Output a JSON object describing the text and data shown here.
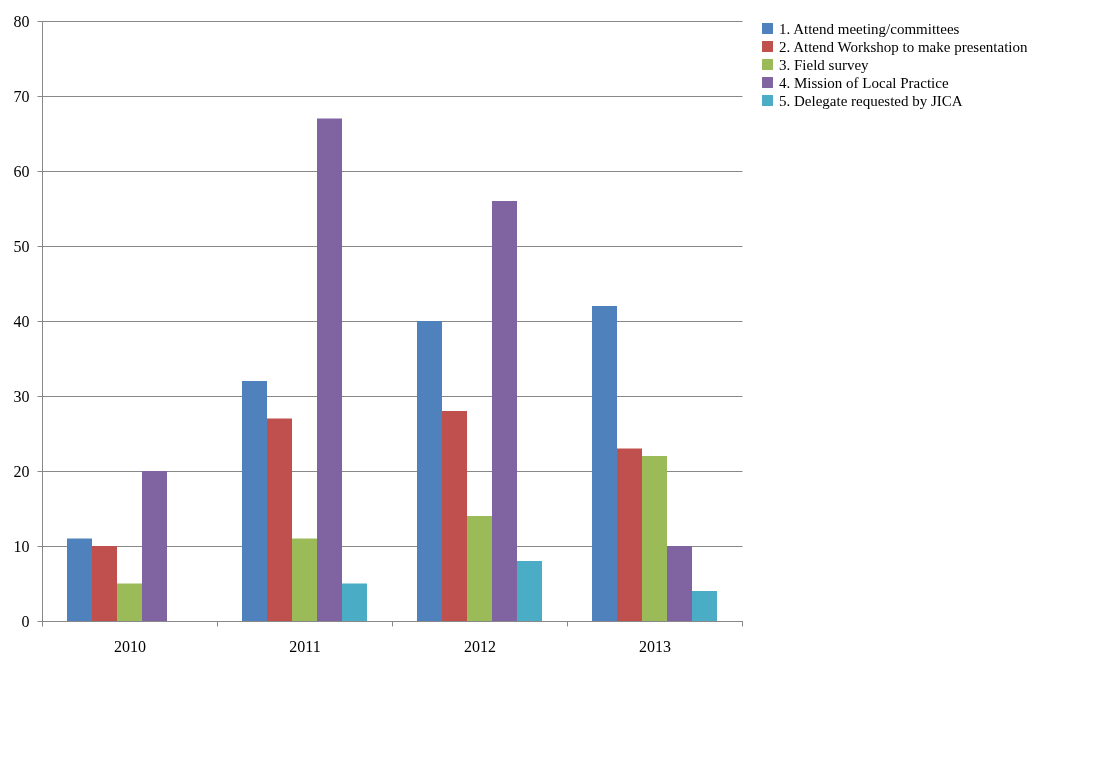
{
  "chart_data": {
    "type": "bar",
    "categories": [
      "2010",
      "2011",
      "2012",
      "2013"
    ],
    "series": [
      {
        "name": "1. Attend meeting/committees",
        "color": "#4f81bd",
        "values": [
          11,
          32,
          40,
          42
        ]
      },
      {
        "name": "2. Attend Workshop to make presentation",
        "color": "#c0504d",
        "values": [
          10,
          27,
          28,
          23
        ]
      },
      {
        "name": "3. Field survey",
        "color": "#9bbb59",
        "values": [
          5,
          11,
          14,
          22
        ]
      },
      {
        "name": "4. Mission of Local Practice",
        "color": "#8064a2",
        "values": [
          20,
          67,
          56,
          10
        ]
      },
      {
        "name": "5. Delegate requested by JICA",
        "color": "#4bacc6",
        "values": [
          null,
          5,
          8,
          4
        ]
      }
    ],
    "ylim": [
      0,
      80
    ],
    "yticks": [
      0,
      10,
      20,
      30,
      40,
      50,
      60,
      70,
      80
    ],
    "grid": "y",
    "legend": "right"
  }
}
